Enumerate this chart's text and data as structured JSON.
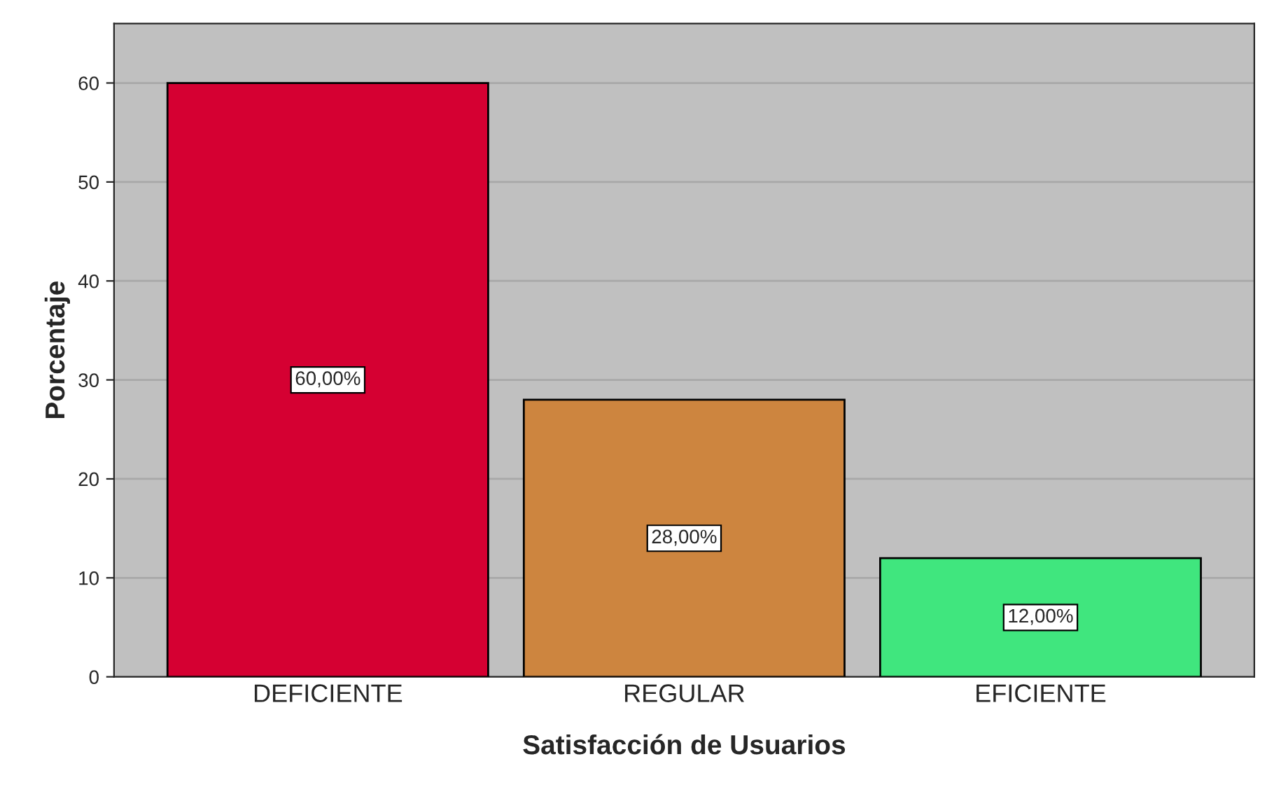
{
  "chart_data": {
    "type": "bar",
    "xlabel": "Satisfacción de Usuarios",
    "ylabel": "Porcentaje",
    "categories": [
      "DEFICIENTE",
      "REGULAR",
      "EFICIENTE"
    ],
    "values": [
      60,
      28,
      12
    ],
    "colors": [
      "#d50032",
      "#cd853f",
      "#40e67e"
    ],
    "value_labels": [
      "60,00%",
      "28,00%",
      "12,00%"
    ],
    "ylim": [
      0,
      66
    ],
    "yticks": [
      0,
      10,
      20,
      30,
      40,
      50,
      60
    ],
    "grid": "y"
  }
}
